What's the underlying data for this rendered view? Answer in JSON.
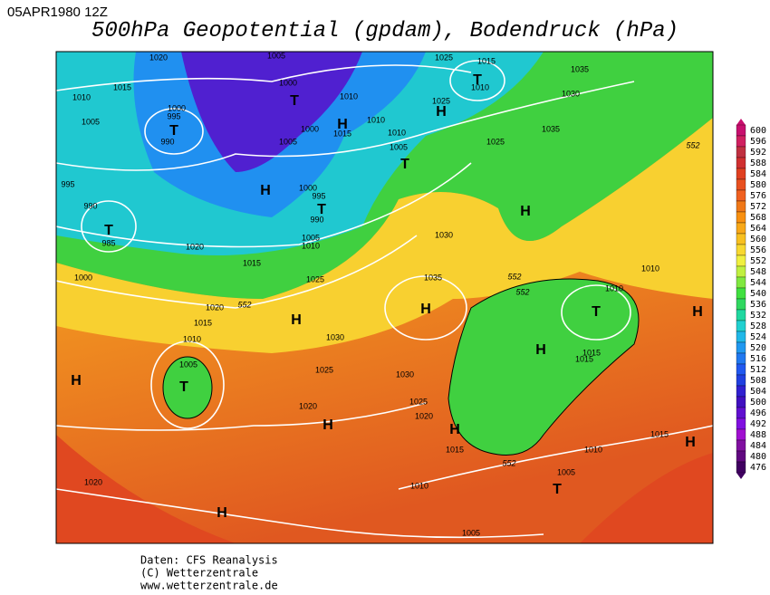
{
  "header": {
    "date": "05APR1980 12Z",
    "title": "500hPa Geopotential (gpdam), Bodendruck (hPa)"
  },
  "colorbar": {
    "levels": [
      600,
      596,
      592,
      588,
      584,
      580,
      576,
      572,
      568,
      564,
      560,
      556,
      552,
      548,
      544,
      540,
      536,
      532,
      528,
      524,
      520,
      516,
      512,
      508,
      504,
      500,
      496,
      492,
      488,
      484,
      480,
      476
    ]
  },
  "map": {
    "isobar_labels": [
      1020,
      1005,
      1025,
      1015,
      1035,
      1010,
      1015,
      1000,
      1010,
      1025,
      1010,
      1030,
      1000,
      995,
      1005,
      990,
      1000,
      1015,
      1010,
      1010,
      1005,
      1025,
      1005,
      1035,
      995,
      1000,
      995,
      990,
      990,
      985,
      1005,
      1010,
      1020,
      1015,
      1030,
      1025,
      1000,
      1035,
      1020,
      1015,
      1010,
      1005,
      1030,
      1025,
      1030,
      1020,
      1025,
      1020,
      1015,
      1010,
      1010,
      1015,
      1015,
      1010,
      1015,
      1005,
      1010,
      1020,
      1005
    ],
    "contour_labels": [
      552,
      552,
      552,
      552,
      552
    ],
    "pressure_centers": [
      "T",
      "T",
      "H",
      "H",
      "T",
      "T",
      "H",
      "T",
      "T",
      "H",
      "H",
      "H",
      "T",
      "H",
      "H",
      "T",
      "H",
      "H",
      "H",
      "H",
      "T",
      "H"
    ]
  },
  "footer": {
    "lines": [
      "Daten: CFS Reanalysis",
      "(C) Wetterzentrale",
      "www.wetterzentrale.de"
    ]
  }
}
